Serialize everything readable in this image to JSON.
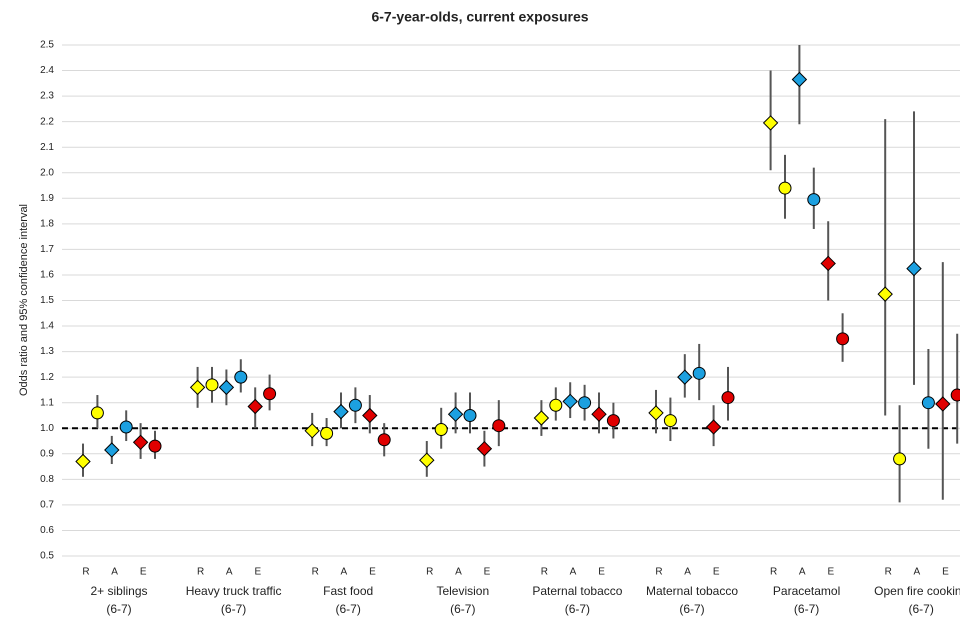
{
  "chart_data": {
    "type": "forest",
    "title": "6-7-year-olds, current exposures",
    "y_label": "Odds ratio and 95% confidence interval",
    "categories": [
      "2+ siblings",
      "Heavy truck traffic",
      "Fast food",
      "Television",
      "Paternal tobacco",
      "Maternal tobacco",
      "Paracetamol",
      "Open fire cooking"
    ],
    "category_sublabels": [
      "(6-7)",
      "(6-7)",
      "(6-7)",
      "(6-7)",
      "(6-7)",
      "(6-7)",
      "(6-7)",
      "(6-7)"
    ],
    "group_ticks": [
      "R",
      "A",
      "E"
    ],
    "ylim": [
      0.5,
      2.5
    ],
    "yticks": [
      0.5,
      0.6,
      0.7,
      0.8,
      0.9,
      {
        "value": 1,
        "label": "1.0"
      },
      1.1,
      1.2,
      1.3,
      1.4,
      1.5,
      1.6,
      1.7,
      1.8,
      1.9,
      {
        "value": 2,
        "label": "2.0"
      },
      2.1,
      2.2,
      2.3,
      2.4,
      2.5
    ],
    "grid": true,
    "reference_line": 1,
    "series": [
      {
        "color": "#ffff00",
        "marker": "diamond",
        "values": [
          0.87,
          1.16,
          0.99,
          0.875,
          1.04,
          1.06,
          2.195,
          1.525
        ],
        "lower": [
          0.81,
          1.08,
          0.93,
          0.81,
          0.97,
          0.98,
          2.01,
          1.05
        ],
        "upper": [
          0.94,
          1.24,
          1.06,
          0.95,
          1.11,
          1.15,
          2.4,
          2.21
        ]
      },
      {
        "color": "#ffff00",
        "marker": "circle",
        "values": [
          1.06,
          1.17,
          0.98,
          0.995,
          1.09,
          1.03,
          1.94,
          0.88
        ],
        "lower": [
          1.0,
          1.1,
          0.93,
          0.92,
          1.03,
          0.95,
          1.82,
          0.71
        ],
        "upper": [
          1.13,
          1.24,
          1.04,
          1.08,
          1.16,
          1.12,
          2.07,
          1.09
        ]
      },
      {
        "color": "#1ca0e0",
        "marker": "diamond",
        "values": [
          0.915,
          1.16,
          1.065,
          1.055,
          1.105,
          1.2,
          2.365,
          1.625
        ],
        "lower": [
          0.86,
          1.09,
          1.0,
          0.98,
          1.04,
          1.12,
          2.19,
          1.17
        ],
        "upper": [
          0.97,
          1.23,
          1.14,
          1.14,
          1.18,
          1.29,
          2.5,
          2.24
        ]
      },
      {
        "color": "#1ca0e0",
        "marker": "circle",
        "values": [
          1.005,
          1.2,
          1.09,
          1.05,
          1.1,
          1.215,
          1.895,
          1.1
        ],
        "lower": [
          0.95,
          1.14,
          1.02,
          0.98,
          1.03,
          1.11,
          1.78,
          0.92
        ],
        "upper": [
          1.07,
          1.27,
          1.16,
          1.14,
          1.17,
          1.33,
          2.02,
          1.31
        ]
      },
      {
        "color": "#e00000",
        "marker": "diamond",
        "values": [
          0.945,
          1.085,
          1.05,
          0.92,
          1.055,
          1.005,
          1.645,
          1.095
        ],
        "lower": [
          0.88,
          1.0,
          0.98,
          0.85,
          0.98,
          0.93,
          1.5,
          0.72
        ],
        "upper": [
          1.02,
          1.16,
          1.13,
          0.99,
          1.14,
          1.09,
          1.81,
          1.65
        ]
      },
      {
        "color": "#e00000",
        "marker": "circle",
        "values": [
          0.93,
          1.135,
          0.955,
          1.01,
          1.03,
          1.12,
          1.35,
          1.13
        ],
        "lower": [
          0.88,
          1.07,
          0.89,
          0.93,
          0.96,
          1.03,
          1.26,
          0.94
        ],
        "upper": [
          0.99,
          1.21,
          1.02,
          1.11,
          1.1,
          1.24,
          1.45,
          1.37
        ]
      }
    ]
  }
}
